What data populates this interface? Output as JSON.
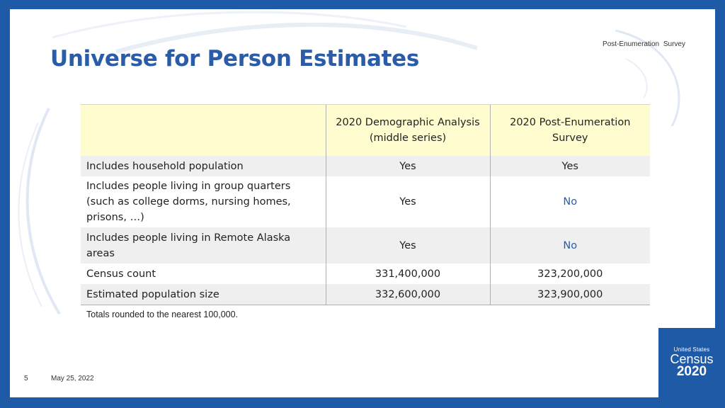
{
  "header": {
    "tag": "Post-Enumeration   Survey"
  },
  "title": "Universe for Person Estimates",
  "table": {
    "columns": [
      {
        "line1": "2020 Demographic Analysis",
        "line2": "(middle series)"
      },
      {
        "line1": "2020 Post-Enumeration",
        "line2": "Survey"
      }
    ],
    "rows": [
      {
        "label": "Includes household population",
        "v1": "Yes",
        "v2": "Yes"
      },
      {
        "label_lines": [
          "Includes people living in group quarters",
          "(such as college dorms, nursing homes,",
          "prisons, …)"
        ],
        "v1": "Yes",
        "v2": "No"
      },
      {
        "label_lines": [
          "Includes people living in Remote Alaska",
          "areas"
        ],
        "v1": "Yes",
        "v2": "No"
      },
      {
        "label": "Census count",
        "v1": "331,400,000",
        "v2": "323,200,000"
      },
      {
        "label": "Estimated population size",
        "v1": "332,600,000",
        "v2": "323,900,000"
      }
    ]
  },
  "note": "Totals rounded to the nearest 100,000.",
  "footer": {
    "slide_number": "5",
    "date": "May 25, 2022"
  },
  "logo": {
    "line1": "United States",
    "line2": "Census",
    "line3": "2020"
  },
  "colors": {
    "brand_blue": "#1f5aa6",
    "title_blue": "#2b5ca8",
    "header_fill": "#fffdd0",
    "row_shade": "#efefef"
  }
}
